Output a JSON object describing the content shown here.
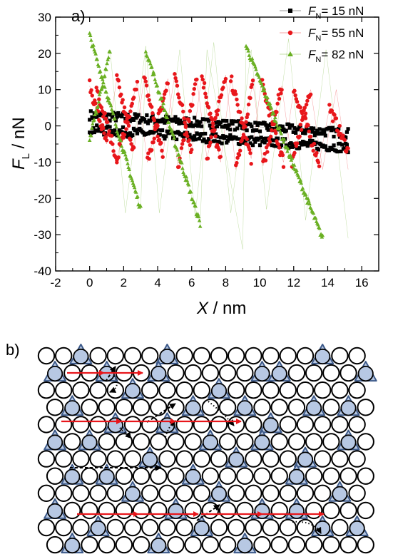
{
  "panel_a": {
    "label": "a)"
  },
  "panel_b": {
    "label": "b)"
  },
  "chart_data": {
    "type": "scatter",
    "xlabel": "X / nm",
    "xlabel_main": "X",
    "xlabel_unit": " / nm",
    "ylabel": "F_L / nN",
    "ylabel_main": "F",
    "ylabel_sub": "L",
    "ylabel_unit": " / nN",
    "xlim": [
      -2,
      17
    ],
    "ylim": [
      -40,
      30
    ],
    "xticks": [
      -2,
      0,
      2,
      4,
      6,
      8,
      10,
      12,
      14,
      16
    ],
    "yticks": [
      -40,
      -30,
      -20,
      -10,
      0,
      10,
      20,
      30
    ],
    "xminor": 1,
    "yminor": 5,
    "grid": false,
    "legend_position": "top-right",
    "legend": [
      {
        "main": "F",
        "sub": "N",
        "text": "= 15 nN"
      },
      {
        "main": "F",
        "sub": "N",
        "text": "= 55 nN"
      },
      {
        "main": "F",
        "sub": "N",
        "text": "= 82 nN"
      }
    ],
    "series": [
      {
        "name": "FN= 15 nN",
        "color": "#000000",
        "marker": "square",
        "trace": [
          [
            0,
            3
          ],
          [
            15.2,
            -2
          ]
        ],
        "retrace": [
          [
            0,
            -1
          ],
          [
            15.2,
            -6
          ]
        ],
        "noise": 1.3
      },
      {
        "name": "FN= 55 nN",
        "color": "#e8161b",
        "marker": "circle",
        "forward": [
          [
            0,
            11
          ],
          [
            1,
            -5
          ],
          [
            1.6,
            13
          ],
          [
            2.6,
            -7
          ],
          [
            3.2,
            13
          ],
          [
            4.3,
            -8
          ],
          [
            5,
            14
          ],
          [
            6,
            -7
          ],
          [
            6.6,
            14
          ],
          [
            7.7,
            -10
          ],
          [
            8.3,
            13
          ],
          [
            9.5,
            -9
          ],
          [
            10.1,
            12
          ],
          [
            11.4,
            -10
          ],
          [
            12,
            10
          ],
          [
            13.5,
            -10
          ],
          [
            14.1,
            5
          ],
          [
            15.2,
            -7
          ]
        ],
        "backward": [
          [
            15.2,
            -12
          ],
          [
            14.5,
            10
          ],
          [
            13.7,
            -12
          ],
          [
            13,
            10
          ],
          [
            11.9,
            -10
          ],
          [
            11.3,
            11
          ],
          [
            10.2,
            -11
          ],
          [
            9.6,
            12
          ],
          [
            8.6,
            -12
          ],
          [
            8,
            14
          ],
          [
            6.9,
            -9
          ],
          [
            6.3,
            13
          ],
          [
            5.2,
            -12
          ],
          [
            4.6,
            13
          ],
          [
            3.4,
            -10
          ],
          [
            2.8,
            12
          ],
          [
            1.6,
            -9
          ],
          [
            0.4,
            10
          ]
        ],
        "noise": 1.6
      },
      {
        "name": "FN= 82 nN",
        "color": "#6ab023",
        "marker": "triangle",
        "forward": [
          [
            0,
            25
          ],
          [
            3,
            -23
          ],
          [
            3.3,
            21
          ],
          [
            6.5,
            -27
          ],
          [
            6.9,
            21
          ],
          [
            9,
            -34
          ],
          [
            9.2,
            22
          ],
          [
            13.7,
            -31
          ]
        ],
        "backward": [
          [
            15.2,
            -31
          ],
          [
            13.9,
            21
          ],
          [
            12.7,
            -26
          ],
          [
            11.7,
            24
          ],
          [
            10.4,
            -23
          ],
          [
            9.5,
            21
          ],
          [
            8.3,
            -24
          ],
          [
            7.3,
            23
          ],
          [
            6.2,
            -25
          ],
          [
            5.3,
            21
          ],
          [
            4.1,
            -24
          ],
          [
            3.3,
            22
          ],
          [
            2.1,
            -24
          ],
          [
            1.2,
            21
          ],
          [
            0,
            -4
          ]
        ],
        "noise": 0.9
      }
    ]
  },
  "lattice": {
    "rows": 12,
    "cols": 19,
    "circle_fill": "#ffffff",
    "circle_stroke": "#000000",
    "triangle_fill": "#b7c8e3",
    "triangle_stroke": "#3d5a8a",
    "triangles": [
      [
        0,
        2
      ],
      [
        0,
        7
      ],
      [
        0,
        16
      ],
      [
        1,
        0
      ],
      [
        1,
        3
      ],
      [
        1,
        6
      ],
      [
        1,
        12
      ],
      [
        1,
        13
      ],
      [
        1,
        18
      ],
      [
        2,
        5
      ],
      [
        2,
        10
      ],
      [
        3,
        1
      ],
      [
        3,
        8
      ],
      [
        3,
        11
      ],
      [
        3,
        15
      ],
      [
        3,
        17
      ],
      [
        4,
        4
      ],
      [
        4,
        7
      ],
      [
        4,
        13
      ],
      [
        5,
        0
      ],
      [
        5,
        2
      ],
      [
        5,
        9
      ],
      [
        5,
        12
      ],
      [
        5,
        17
      ],
      [
        6,
        6
      ],
      [
        6,
        11
      ],
      [
        6,
        15
      ],
      [
        7,
        1
      ],
      [
        7,
        3
      ],
      [
        7,
        8
      ],
      [
        7,
        14
      ],
      [
        8,
        5
      ],
      [
        8,
        10
      ],
      [
        8,
        17
      ],
      [
        9,
        0
      ],
      [
        9,
        7
      ],
      [
        9,
        12
      ],
      [
        9,
        14
      ],
      [
        10,
        3
      ],
      [
        10,
        9
      ],
      [
        10,
        16
      ],
      [
        10,
        18
      ],
      [
        11,
        1
      ],
      [
        11,
        6
      ],
      [
        11,
        11
      ]
    ],
    "red_arrow_color": "#e8161b",
    "red_arrows": [
      [
        [
          94,
          523
        ],
        [
          146,
          523
        ]
      ],
      [
        [
          146,
          523
        ],
        [
          200,
          523
        ]
      ],
      [
        [
          86,
          591
        ],
        [
          170,
          591
        ]
      ],
      [
        [
          170,
          591
        ],
        [
          246,
          591
        ]
      ],
      [
        [
          246,
          591
        ],
        [
          338,
          591
        ]
      ],
      [
        [
          108,
          721
        ],
        [
          194,
          721
        ]
      ],
      [
        [
          194,
          721
        ],
        [
          278,
          721
        ]
      ],
      [
        [
          282,
          721
        ],
        [
          368,
          721
        ]
      ],
      [
        [
          368,
          721
        ],
        [
          454,
          721
        ]
      ]
    ],
    "dashed_arrows": [
      [
        [
          98,
          656
        ],
        [
          226,
          656
        ]
      ],
      [
        [
          148,
          535
        ],
        [
          162,
          514
        ]
      ],
      [
        [
          206,
          592
        ],
        [
          246,
          566
        ]
      ],
      [
        [
          276,
          730
        ],
        [
          308,
          708
        ]
      ]
    ],
    "dotted_paths": [
      "M 160 527 Q 170 543 154 550",
      "M 168 600 Q 180 612 182 606",
      "M 292 563 Q 314 580 328 597",
      "M 410 732 Q 440 730 450 748",
      "M 232 613 Q 236 598 246 590"
    ]
  }
}
